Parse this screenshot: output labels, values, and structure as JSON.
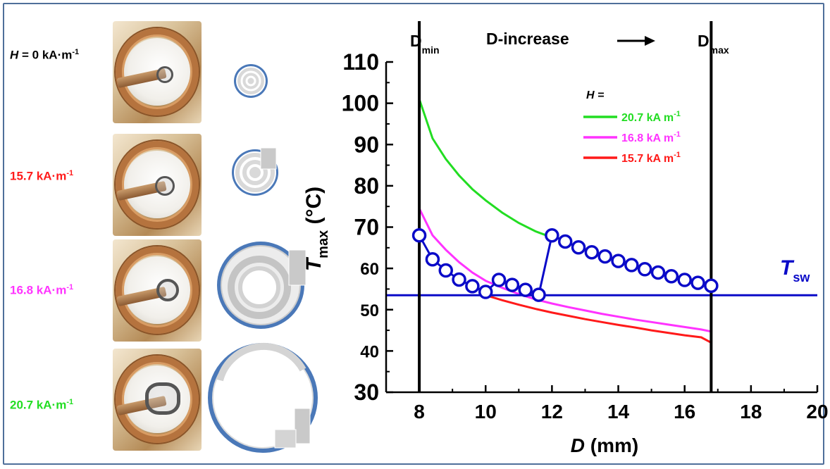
{
  "field_labels": [
    {
      "prefix": "H",
      "value": " = 0 kA·m",
      "exp": "-1",
      "color": "#000000"
    },
    {
      "prefix": "",
      "value": "15.7 kA·m",
      "exp": "-1",
      "color": "#ff1a1a"
    },
    {
      "prefix": "",
      "value": "16.8 kA·m",
      "exp": "-1",
      "color": "#ff33ff"
    },
    {
      "prefix": "",
      "value": "20.7 kA·m",
      "exp": "-1",
      "color": "#22dd22"
    }
  ],
  "top_annotations": {
    "dmin": "D",
    "dmin_sub": "min",
    "increase": "D-increase",
    "dmax": "D",
    "dmax_sub": "max"
  },
  "tsw": {
    "label": "T",
    "sub": "sw",
    "value": 53.5,
    "color": "#0a0ac8"
  },
  "chart_data": {
    "type": "line",
    "xlabel_var": "D",
    "xlabel_unit": " (mm)",
    "ylabel_var": "T",
    "ylabel_sub": "max",
    "ylabel_unit": " (°C)",
    "xlim": [
      7,
      20
    ],
    "ylim": [
      30,
      110
    ],
    "xticks": [
      8,
      10,
      12,
      14,
      16,
      18,
      20
    ],
    "yticks": [
      30,
      40,
      50,
      60,
      70,
      80,
      90,
      100,
      110
    ],
    "grid": false,
    "legend_title": "H =",
    "legend_position": "top-right",
    "vertical_lines": [
      8,
      16.8
    ],
    "series": [
      {
        "name": "20.7 kA m",
        "exp": "-1",
        "color": "#22dd22",
        "x": [
          8,
          8.4,
          8.8,
          9.2,
          9.6,
          10,
          10.5,
          11,
          11.5,
          12
        ],
        "y": [
          101,
          91.5,
          86.5,
          82.5,
          79.2,
          76.5,
          73.5,
          71,
          69,
          67.5
        ]
      },
      {
        "name": "16.8 kA m",
        "exp": "-1",
        "color": "#ff33ff",
        "x": [
          8,
          8.4,
          8.8,
          9.2,
          9.6,
          10,
          10.5,
          11,
          11.5,
          12,
          12.5,
          13,
          13.5,
          14,
          14.5,
          15,
          15.5,
          16,
          16.5,
          16.8
        ],
        "y": [
          74.5,
          68,
          64.5,
          61.5,
          59,
          57,
          55.3,
          53.8,
          52.5,
          51.5,
          50.6,
          49.8,
          49,
          48.3,
          47.6,
          47,
          46.4,
          45.8,
          45.2,
          44.7
        ]
      },
      {
        "name": "15.7 kA m",
        "exp": "-1",
        "color": "#ff1a1a",
        "x": [
          10,
          10.5,
          11,
          11.5,
          12,
          12.5,
          13,
          13.5,
          14,
          14.5,
          15,
          15.5,
          16,
          16.5,
          16.8
        ],
        "y": [
          53.5,
          52.3,
          51.2,
          50.2,
          49.3,
          48.5,
          47.7,
          47,
          46.3,
          45.7,
          45,
          44.4,
          43.8,
          43.3,
          42
        ]
      }
    ],
    "path_series": {
      "color": "#0a0ac8",
      "x": [
        8.0,
        8.4,
        8.8,
        9.2,
        9.6,
        10.0,
        10.4,
        10.8,
        11.2,
        11.6,
        12.0,
        12.4,
        12.8,
        13.2,
        13.6,
        14.0,
        14.4,
        14.8,
        15.2,
        15.6,
        16.0,
        16.4,
        16.8
      ],
      "y": [
        68,
        62.2,
        59.5,
        57.3,
        55.7,
        54.3,
        57.2,
        56.0,
        54.8,
        53.6,
        68,
        66.5,
        65.1,
        63.9,
        62.9,
        61.8,
        60.8,
        59.8,
        59.0,
        58.1,
        57.2,
        56.5,
        55.8
      ]
    }
  }
}
